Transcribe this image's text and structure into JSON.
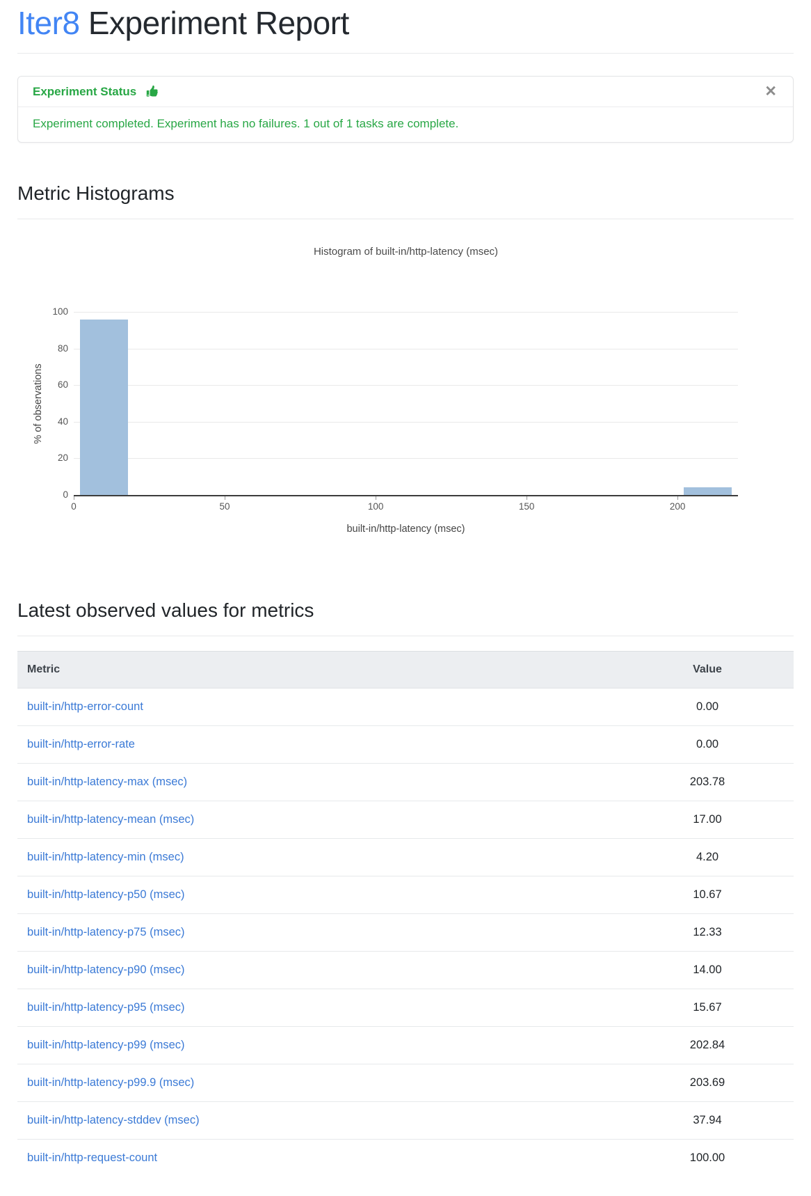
{
  "page": {
    "title_accent": "Iter8",
    "title_rest": " Experiment Report"
  },
  "status_card": {
    "header": "Experiment Status",
    "icon": "thumbs-up-icon",
    "close_symbol": "✕",
    "message": "Experiment completed. Experiment has no failures. 1 out of 1 tasks are complete."
  },
  "sections": {
    "histograms": "Metric Histograms",
    "latest_values": "Latest observed values for metrics"
  },
  "chart_data": {
    "type": "bar",
    "title": "Histogram of built-in/http-latency (msec)",
    "xlabel": "built-in/http-latency (msec)",
    "ylabel": "% of observations",
    "xlim": [
      0,
      220
    ],
    "ylim": [
      0,
      100
    ],
    "x_ticks": [
      0,
      50,
      100,
      150,
      200
    ],
    "y_ticks": [
      0,
      20,
      40,
      60,
      80,
      100
    ],
    "grid": true,
    "bars": [
      {
        "x_start": 2,
        "x_end": 18,
        "percent": 96
      },
      {
        "x_start": 202,
        "x_end": 218,
        "percent": 4
      }
    ]
  },
  "table": {
    "columns": [
      "Metric",
      "Value"
    ],
    "rows": [
      {
        "metric": "built-in/http-error-count",
        "value": "0.00"
      },
      {
        "metric": "built-in/http-error-rate",
        "value": "0.00"
      },
      {
        "metric": "built-in/http-latency-max (msec)",
        "value": "203.78"
      },
      {
        "metric": "built-in/http-latency-mean (msec)",
        "value": "17.00"
      },
      {
        "metric": "built-in/http-latency-min (msec)",
        "value": "4.20"
      },
      {
        "metric": "built-in/http-latency-p50 (msec)",
        "value": "10.67"
      },
      {
        "metric": "built-in/http-latency-p75 (msec)",
        "value": "12.33"
      },
      {
        "metric": "built-in/http-latency-p90 (msec)",
        "value": "14.00"
      },
      {
        "metric": "built-in/http-latency-p95 (msec)",
        "value": "15.67"
      },
      {
        "metric": "built-in/http-latency-p99 (msec)",
        "value": "202.84"
      },
      {
        "metric": "built-in/http-latency-p99.9 (msec)",
        "value": "203.69"
      },
      {
        "metric": "built-in/http-latency-stddev (msec)",
        "value": "37.94"
      },
      {
        "metric": "built-in/http-request-count",
        "value": "100.00"
      }
    ]
  },
  "colors": {
    "accent_blue": "#4285f4",
    "link_blue": "#3b7ad6",
    "success_green": "#28a745",
    "bar_fill": "#a2c0dd",
    "table_header_bg": "#eceef1"
  }
}
